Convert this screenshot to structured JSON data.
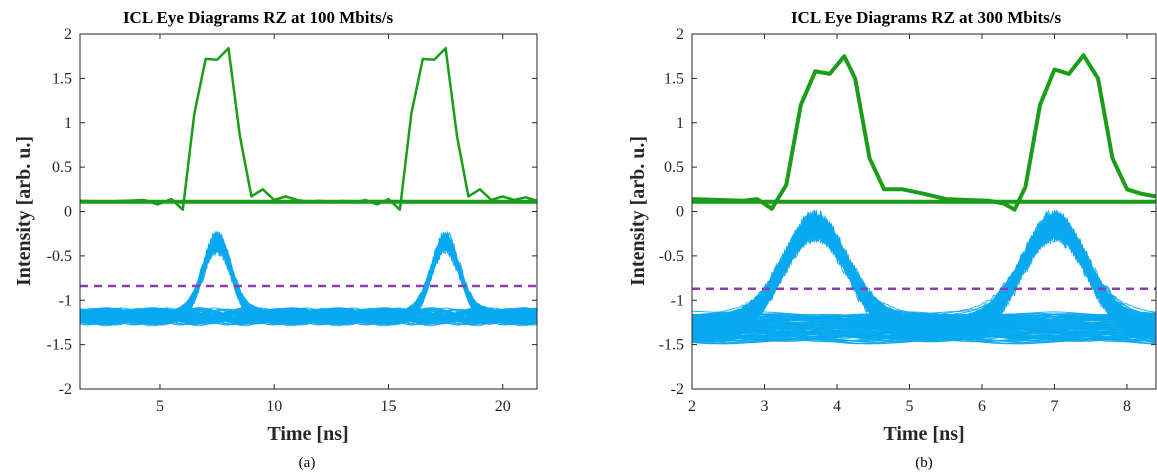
{
  "chart_data": [
    {
      "type": "line",
      "title": "ICL Eye Diagrams RZ at 100 Mbits/s",
      "xlabel": "Time [ns]",
      "ylabel": "Intensity [arb. u.]",
      "caption": "(a)",
      "xlim": [
        1.5,
        21.5
      ],
      "ylim": [
        -2,
        2
      ],
      "xticks": [
        5,
        10,
        15,
        20
      ],
      "yticks": [
        -2,
        -1.5,
        -1,
        -0.5,
        0,
        0.5,
        1,
        1.5,
        2
      ],
      "colors": {
        "green": "#1a9e1a",
        "blue": "#0aa8f0",
        "threshold": "#8a3fb0"
      },
      "series": [
        {
          "role": "green trace upper",
          "x": [
            1.5,
            2.5,
            3.5,
            4.3,
            4.9,
            5.5,
            6.0,
            6.5,
            7.0,
            7.5,
            8.0,
            8.5,
            9.0,
            9.5,
            10.0,
            10.5,
            11.0,
            11.5,
            12.0,
            12.5,
            13.0,
            13.5,
            14.0,
            14.5,
            15.0,
            15.5,
            16.0,
            16.5,
            17.0,
            17.5,
            18.0,
            18.5,
            19.0,
            19.5,
            20.0,
            20.5,
            21.0,
            21.5
          ],
          "y": [
            0.12,
            0.11,
            0.12,
            0.13,
            0.08,
            0.14,
            0.02,
            1.1,
            1.72,
            1.71,
            1.84,
            0.85,
            0.17,
            0.25,
            0.13,
            0.17,
            0.13,
            0.11,
            0.12,
            0.1,
            0.12,
            0.1,
            0.13,
            0.08,
            0.14,
            0.02,
            1.1,
            1.72,
            1.71,
            1.84,
            0.85,
            0.17,
            0.25,
            0.13,
            0.17,
            0.13,
            0.16,
            0.12
          ]
        },
        {
          "role": "green trace baseline",
          "x": [
            1.5,
            21.5
          ],
          "y": [
            0.11,
            0.11
          ]
        },
        {
          "role": "threshold",
          "x": [
            1.5,
            21.5
          ],
          "y": [
            -0.84,
            -0.84
          ]
        }
      ],
      "eye": {
        "ones_bit_centers": [
          7.5,
          17.5
        ],
        "ones_peak": [
          -0.28,
          -0.55
        ],
        "zero_band": [
          -1.42,
          -0.95
        ],
        "period": 10
      }
    },
    {
      "type": "line",
      "title": "ICL Eye Diagrams RZ at 300 Mbits/s",
      "xlabel": "Time [ns]",
      "ylabel": "Intensity [arb. u.]",
      "caption": "(b)",
      "xlim": [
        2,
        8.4
      ],
      "ylim": [
        -2,
        2
      ],
      "xticks": [
        2,
        3,
        4,
        5,
        6,
        7,
        8
      ],
      "yticks": [
        -2,
        -1.5,
        -1,
        -0.5,
        0,
        0.5,
        1,
        1.5,
        2
      ],
      "colors": {
        "green": "#1a9e1a",
        "blue": "#0aa8f0",
        "threshold": "#8a3fb0"
      },
      "series": [
        {
          "role": "green trace upper",
          "x": [
            2.0,
            2.4,
            2.7,
            2.9,
            3.1,
            3.3,
            3.5,
            3.7,
            3.9,
            4.1,
            4.25,
            4.45,
            4.65,
            4.9,
            5.2,
            5.5,
            5.8,
            6.1,
            6.3,
            6.45,
            6.6,
            6.8,
            7.0,
            7.2,
            7.4,
            7.6,
            7.8,
            8.0,
            8.2,
            8.4
          ],
          "y": [
            0.14,
            0.13,
            0.12,
            0.14,
            0.03,
            0.3,
            1.2,
            1.58,
            1.55,
            1.75,
            1.5,
            0.6,
            0.25,
            0.25,
            0.2,
            0.14,
            0.13,
            0.12,
            0.09,
            0.02,
            0.28,
            1.2,
            1.6,
            1.55,
            1.76,
            1.5,
            0.6,
            0.25,
            0.2,
            0.17
          ]
        },
        {
          "role": "green trace baseline",
          "x": [
            2,
            8.4
          ],
          "y": [
            0.11,
            0.11
          ]
        },
        {
          "role": "threshold",
          "x": [
            2,
            8.4
          ],
          "y": [
            -0.87,
            -0.87
          ]
        }
      ],
      "eye": {
        "ones_bit_centers": [
          3.7,
          7.0
        ],
        "ones_peak": [
          -0.05,
          -0.5
        ],
        "zero_band": [
          -1.62,
          -1.0
        ],
        "period": 3.33
      }
    }
  ]
}
